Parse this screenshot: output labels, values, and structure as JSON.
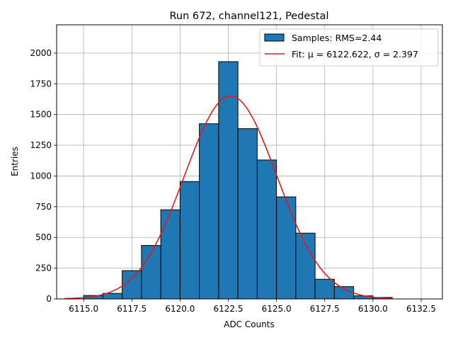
{
  "chart_data": {
    "type": "bar",
    "title": "Run 672, channel121, Pedestal",
    "xlabel": "ADC Counts",
    "ylabel": "Entries",
    "xlim": [
      6113.6,
      6133.6
    ],
    "ylim": [
      0,
      2230
    ],
    "xticks": [
      "6115.0",
      "6117.5",
      "6120.0",
      "6122.5",
      "6125.0",
      "6127.5",
      "6130.0",
      "6132.5"
    ],
    "yticks": [
      "0",
      "250",
      "500",
      "750",
      "1000",
      "1250",
      "1500",
      "1750",
      "2000"
    ],
    "grid": true,
    "legend_position": "top-right",
    "bins": [
      {
        "x0": 6115,
        "x1": 6116,
        "count": 28
      },
      {
        "x0": 6116,
        "x1": 6117,
        "count": 45
      },
      {
        "x0": 6117,
        "x1": 6118,
        "count": 230
      },
      {
        "x0": 6118,
        "x1": 6119,
        "count": 435
      },
      {
        "x0": 6119,
        "x1": 6120,
        "count": 725
      },
      {
        "x0": 6120,
        "x1": 6121,
        "count": 955
      },
      {
        "x0": 6121,
        "x1": 6122,
        "count": 1425
      },
      {
        "x0": 6122,
        "x1": 6123,
        "count": 1930
      },
      {
        "x0": 6123,
        "x1": 6124,
        "count": 1385
      },
      {
        "x0": 6124,
        "x1": 6125,
        "count": 1130
      },
      {
        "x0": 6125,
        "x1": 6126,
        "count": 830
      },
      {
        "x0": 6126,
        "x1": 6127,
        "count": 535
      },
      {
        "x0": 6127,
        "x1": 6128,
        "count": 160
      },
      {
        "x0": 6128,
        "x1": 6129,
        "count": 100
      },
      {
        "x0": 6129,
        "x1": 6130,
        "count": 25
      },
      {
        "x0": 6130,
        "x1": 6131,
        "count": 12
      }
    ],
    "fit": {
      "mu": 6122.622,
      "sigma": 2.397,
      "amplitude": 1650,
      "x_range": [
        6114.0,
        6131.0
      ]
    },
    "series": [
      {
        "name": "Samples: RMS=2.44",
        "kind": "histogram",
        "color": "#1f77b4",
        "edge": "#000000"
      },
      {
        "name": "Fit: μ = 6122.622, σ = 2.397",
        "kind": "line",
        "color": "#e31a1c"
      }
    ]
  }
}
